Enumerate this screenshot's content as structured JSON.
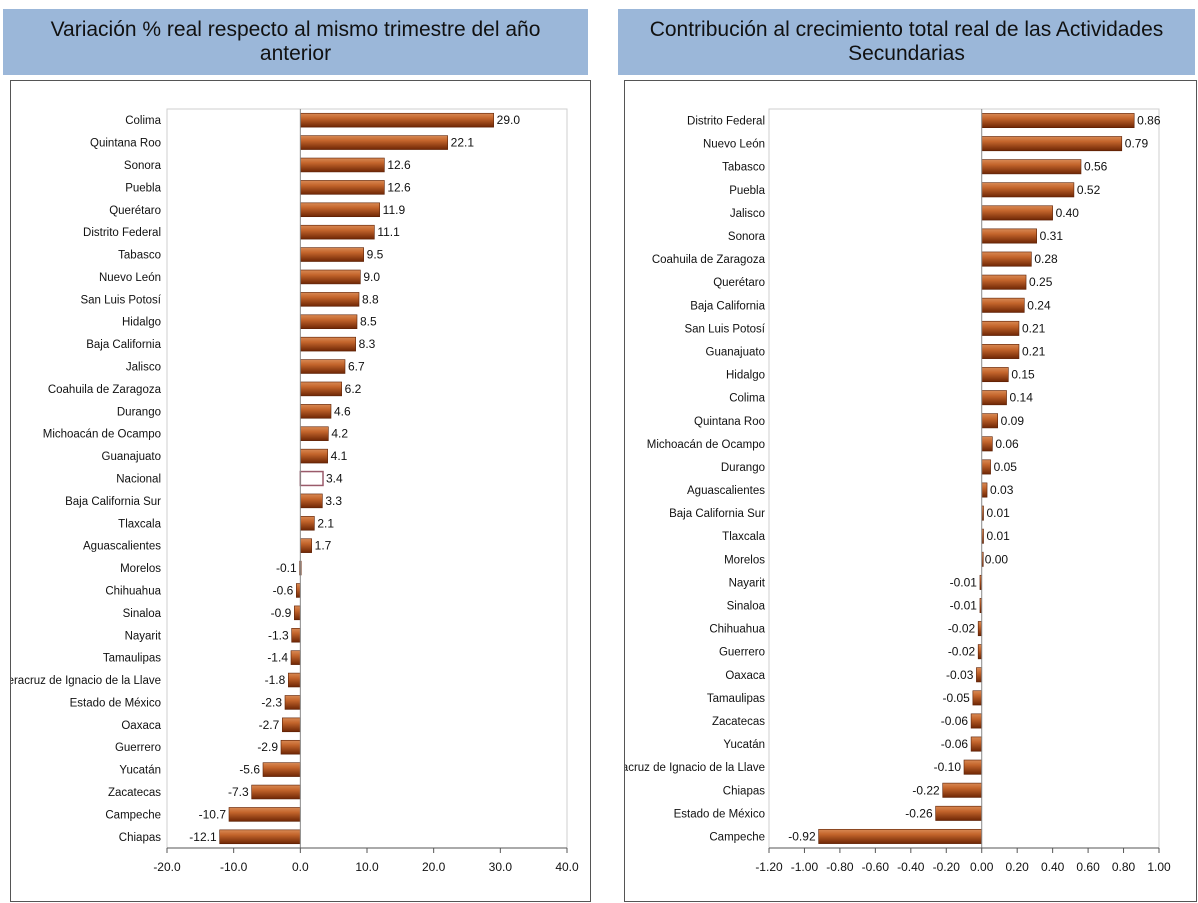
{
  "panels": {
    "left": {
      "title": "Variación % real respecto al mismo trimestre del año anterior"
    },
    "right": {
      "title": "Contribución al crecimiento total real de las Actividades Secundarias"
    }
  },
  "colors": {
    "bar": "#9a3d0e",
    "bar_highlight": "#c4652c",
    "nacional": "#ffffff",
    "header_bg": "#9bb7d9"
  },
  "chart_data": [
    {
      "type": "bar",
      "orientation": "horizontal",
      "title": "Variación % real respecto al mismo trimestre del año anterior",
      "categories": [
        "Colima",
        "Quintana Roo",
        "Sonora",
        "Puebla",
        "Querétaro",
        "Distrito Federal",
        "Tabasco",
        "Nuevo León",
        "San Luis Potosí",
        "Hidalgo",
        "Baja California",
        "Jalisco",
        "Coahuila de Zaragoza",
        "Durango",
        "Michoacán de Ocampo",
        "Guanajuato",
        "Nacional",
        "Baja California Sur",
        "Tlaxcala",
        "Aguascalientes",
        "Morelos",
        "Chihuahua",
        "Sinaloa",
        "Nayarit",
        "Tamaulipas",
        "Veracruz de Ignacio de la Llave",
        "Estado de México",
        "Oaxaca",
        "Guerrero",
        "Yucatán",
        "Zacatecas",
        "Campeche",
        "Chiapas"
      ],
      "values": [
        29.0,
        22.1,
        12.6,
        12.6,
        11.9,
        11.1,
        9.5,
        9.0,
        8.8,
        8.5,
        8.3,
        6.7,
        6.2,
        4.6,
        4.2,
        4.1,
        3.4,
        3.3,
        2.1,
        1.7,
        -0.1,
        -0.6,
        -0.9,
        -1.3,
        -1.4,
        -1.8,
        -2.3,
        -2.7,
        -2.9,
        -5.6,
        -7.3,
        -10.7,
        -12.1
      ],
      "labels": [
        "29.0",
        "22.1",
        "12.6",
        "12.6",
        "11.9",
        "11.1",
        "9.5",
        "9.0",
        "8.8",
        "8.5",
        "8.3",
        "6.7",
        "6.2",
        "4.6",
        "4.2",
        "4.1",
        "3.4",
        "3.3",
        "2.1",
        "1.7",
        "-0.1",
        "-0.6",
        "-0.9",
        "-1.3",
        "-1.4",
        "-1.8",
        "-2.3",
        "-2.7",
        "-2.9",
        "-5.6",
        "-7.3",
        "-10.7",
        "-12.1"
      ],
      "highlight": "Nacional",
      "xlim": [
        -20,
        40
      ],
      "xticks": [
        "-20.0",
        "-10.0",
        "0.0",
        "10.0",
        "20.0",
        "30.0",
        "40.0"
      ],
      "grid": false
    },
    {
      "type": "bar",
      "orientation": "horizontal",
      "title": "Contribución al crecimiento total real de las Actividades Secundarias",
      "categories": [
        "Distrito Federal",
        "Nuevo León",
        "Tabasco",
        "Puebla",
        "Jalisco",
        "Sonora",
        "Coahuila de Zaragoza",
        "Querétaro",
        "Baja California",
        "San Luis Potosí",
        "Guanajuato",
        "Hidalgo",
        "Colima",
        "Quintana Roo",
        "Michoacán de Ocampo",
        "Durango",
        "Aguascalientes",
        "Baja California Sur",
        "Tlaxcala",
        "Morelos",
        "Nayarit",
        "Sinaloa",
        "Chihuahua",
        "Guerrero",
        "Oaxaca",
        "Tamaulipas",
        "Zacatecas",
        "Yucatán",
        "Veracruz de Ignacio de la Llave",
        "Chiapas",
        "Estado de México",
        "Campeche"
      ],
      "values": [
        0.86,
        0.79,
        0.56,
        0.52,
        0.4,
        0.31,
        0.28,
        0.25,
        0.24,
        0.21,
        0.21,
        0.15,
        0.14,
        0.09,
        0.06,
        0.05,
        0.03,
        0.01,
        0.01,
        0.0,
        -0.01,
        -0.01,
        -0.02,
        -0.02,
        -0.03,
        -0.05,
        -0.06,
        -0.06,
        -0.1,
        -0.22,
        -0.26,
        -0.92
      ],
      "labels": [
        "0.86",
        "0.79",
        "0.56",
        "0.52",
        "0.40",
        "0.31",
        "0.28",
        "0.25",
        "0.24",
        "0.21",
        "0.21",
        "0.15",
        "0.14",
        "0.09",
        "0.06",
        "0.05",
        "0.03",
        "0.01",
        "0.01",
        "0.00",
        "-0.01",
        "-0.01",
        "-0.02",
        "-0.02",
        "-0.03",
        "-0.05",
        "-0.06",
        "-0.06",
        "-0.10",
        "-0.22",
        "-0.26",
        "-0.92"
      ],
      "xlim": [
        -1.2,
        1.0
      ],
      "xticks": [
        "-1.20",
        "-1.00",
        "-0.80",
        "-0.60",
        "-0.40",
        "-0.20",
        "0.00",
        "0.20",
        "0.40",
        "0.60",
        "0.80",
        "1.00"
      ],
      "grid": false
    }
  ]
}
